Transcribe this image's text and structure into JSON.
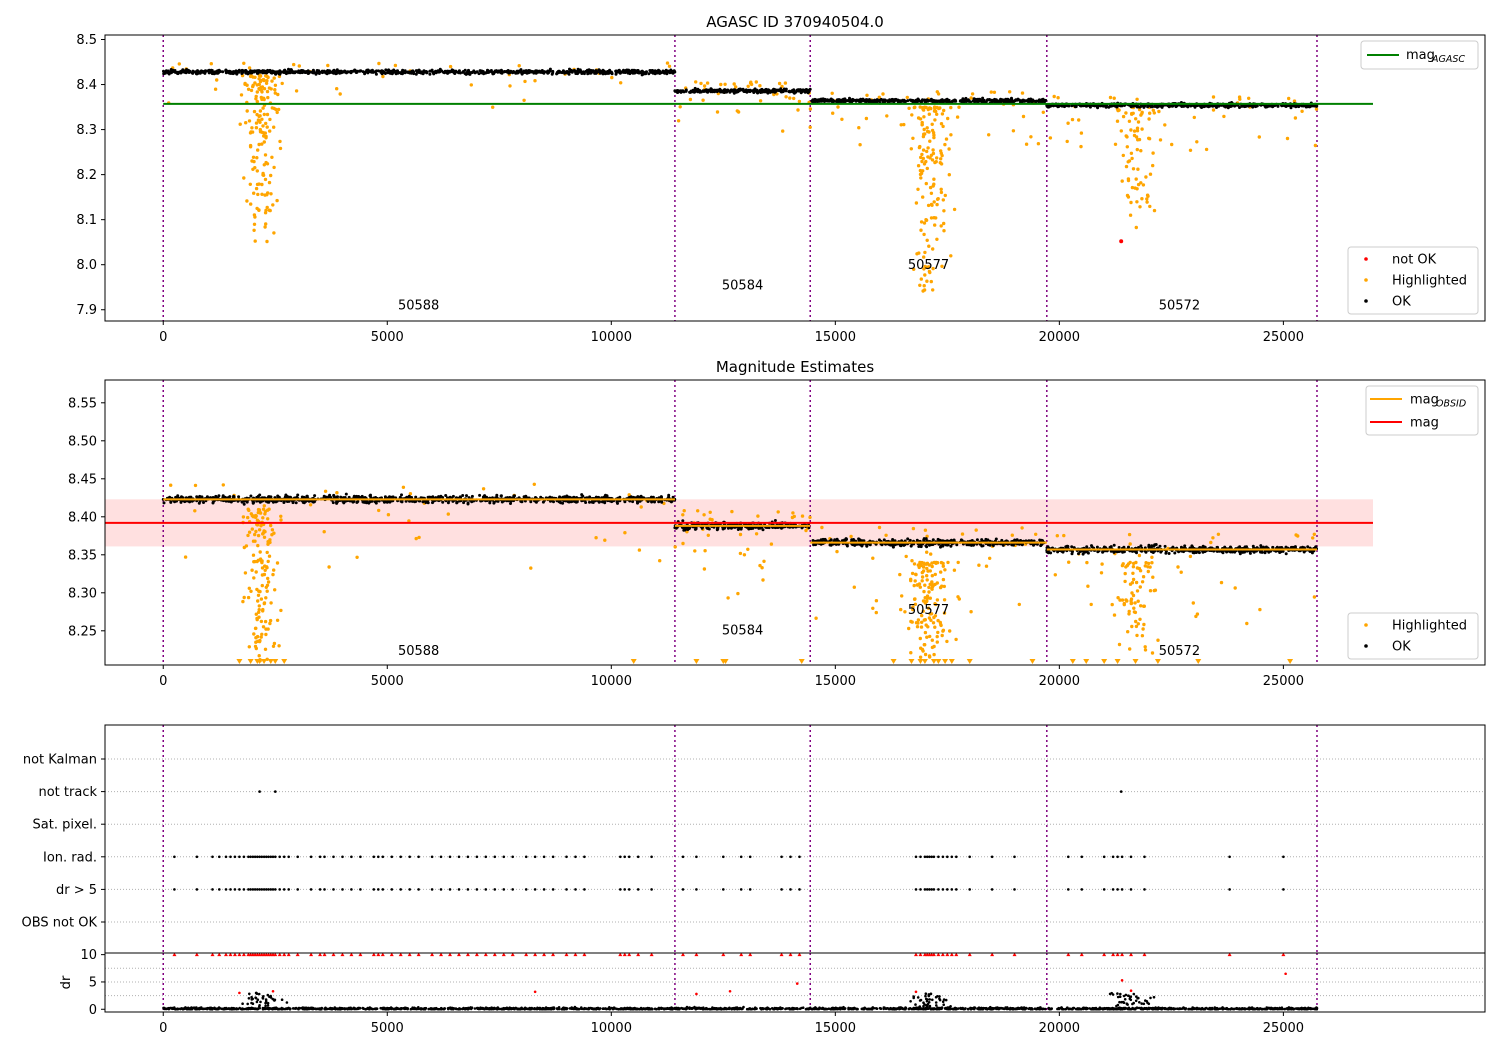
{
  "chart_data": [
    {
      "type": "scatter",
      "title": "AGASC ID 370940504.0",
      "xlim": [
        -1300,
        29500
      ],
      "ylim": [
        7.875,
        8.51
      ],
      "x_ticks": [
        0,
        5000,
        10000,
        15000,
        20000,
        25000
      ],
      "y_ticks": [
        7.9,
        8.0,
        8.1,
        8.2,
        8.3,
        8.4,
        8.5
      ],
      "obsid_boundaries": [
        0,
        11420,
        14440,
        19720,
        25750
      ],
      "obsid_labels": [
        {
          "text": "50588",
          "x": 5700,
          "y": 7.9
        },
        {
          "text": "50584",
          "x": 12930,
          "y": 7.945
        },
        {
          "text": "50577",
          "x": 17080,
          "y": 7.99
        },
        {
          "text": "50572",
          "x": 22680,
          "y": 7.9
        }
      ],
      "segments": [
        {
          "x_start": 0,
          "x_end": 11420,
          "level": 8.428
        },
        {
          "x_start": 11420,
          "x_end": 14440,
          "level": 8.386
        },
        {
          "x_start": 14440,
          "x_end": 19720,
          "level": 8.364
        },
        {
          "x_start": 19720,
          "x_end": 25750,
          "level": 8.354
        }
      ],
      "reference_lines": [
        {
          "name": "mag_AGASC",
          "y": 8.357,
          "x_start": 0,
          "x_end": 27000,
          "color": "#008000"
        }
      ],
      "legend": {
        "upper": {
          "placement": "top-right",
          "entries": [
            {
              "main": "mag",
              "sub": "AGASC",
              "color": "#008000"
            }
          ]
        },
        "lower": {
          "placement": "bottom-right",
          "entries": [
            {
              "label": "not OK",
              "color": "#ff0000"
            },
            {
              "label": "Highlighted",
              "color": "#ffa500"
            },
            {
              "label": "OK",
              "color": "#000000"
            }
          ]
        }
      },
      "highlighted_clusters": [
        {
          "x_center": 2200,
          "x_spread": 500,
          "y_min": 8.05,
          "y_max": 8.42,
          "count": 160
        },
        {
          "x_center": 17100,
          "x_spread": 650,
          "y_min": 7.94,
          "y_max": 8.35,
          "count": 150
        },
        {
          "x_center": 21700,
          "x_spread": 700,
          "y_min": 8.08,
          "y_max": 8.35,
          "count": 80
        }
      ],
      "not_ok_points": [
        {
          "x": 21380,
          "y": 8.052
        }
      ]
    },
    {
      "type": "scatter",
      "title": "Magnitude Estimates",
      "xlim": [
        -1300,
        29500
      ],
      "ylim": [
        8.205,
        8.58
      ],
      "x_ticks": [
        0,
        5000,
        10000,
        15000,
        20000,
        25000
      ],
      "y_ticks": [
        8.25,
        8.3,
        8.35,
        8.4,
        8.45,
        8.5,
        8.55
      ],
      "obsid_boundaries": [
        0,
        11420,
        14440,
        19720,
        25750
      ],
      "obsid_labels": [
        {
          "text": "50588",
          "x": 5700,
          "y": 8.218
        },
        {
          "text": "50584",
          "x": 12930,
          "y": 8.245
        },
        {
          "text": "50577",
          "x": 17080,
          "y": 8.272
        },
        {
          "text": "50572",
          "x": 22680,
          "y": 8.218
        }
      ],
      "segments": [
        {
          "x_start": 0,
          "x_end": 11420,
          "level": 8.423
        },
        {
          "x_start": 11420,
          "x_end": 14440,
          "level": 8.388
        },
        {
          "x_start": 14440,
          "x_end": 19720,
          "level": 8.366
        },
        {
          "x_start": 19720,
          "x_end": 25750,
          "level": 8.357
        }
      ],
      "mag_line": {
        "name": "mag",
        "y": 8.392,
        "band": [
          8.361,
          8.423
        ],
        "x_start": -1300,
        "x_end": 27000,
        "color": "#ff0000"
      },
      "legend": {
        "upper": {
          "placement": "top-right",
          "entries": [
            {
              "main": "mag",
              "sub": "OBSID",
              "color": "#ffa500"
            },
            {
              "main": "mag",
              "sub": "",
              "color": "#ff0000"
            }
          ]
        },
        "lower": {
          "placement": "bottom-right",
          "entries": [
            {
              "label": "Highlighted",
              "color": "#ffa500"
            },
            {
              "label": "OK",
              "color": "#000000"
            }
          ]
        }
      },
      "highlighted_clusters": [
        {
          "x_center": 2200,
          "x_spread": 500,
          "y_min": 8.21,
          "y_max": 8.41,
          "count": 150
        },
        {
          "x_center": 17100,
          "x_spread": 650,
          "y_min": 8.21,
          "y_max": 8.34,
          "count": 140
        },
        {
          "x_center": 21700,
          "x_spread": 700,
          "y_min": 8.22,
          "y_max": 8.34,
          "count": 70
        }
      ],
      "lower_limit_markers_x": [
        1700,
        1950,
        2100,
        2150,
        2250,
        2400,
        2500,
        2700,
        10500,
        11900,
        12500,
        12550,
        14250,
        16300,
        16700,
        16900,
        17000,
        17200,
        17300,
        17450,
        17600,
        18000,
        19400,
        20300,
        20600,
        21000,
        21300,
        21700,
        22200,
        23100,
        25150
      ]
    },
    {
      "type": "scatter",
      "title": "",
      "xlim": [
        -1300,
        29500
      ],
      "categories": [
        "not Kalman",
        "not track",
        "Sat. pixel.",
        "Ion. rad.",
        "dr > 5",
        "OBS not OK"
      ],
      "obsid_boundaries": [
        0,
        11420,
        14440,
        19720,
        25750
      ],
      "flag_points": {
        "not track": [
          2150,
          2500,
          21380
        ],
        "Ion. rad.": [
          250,
          750,
          1100,
          1250,
          1400,
          1500,
          1600,
          1700,
          1800,
          1900,
          1950,
          2000,
          2050,
          2100,
          2150,
          2200,
          2250,
          2300,
          2350,
          2400,
          2450,
          2500,
          2600,
          2700,
          2800,
          3000,
          3300,
          3500,
          3600,
          3800,
          4000,
          4200,
          4400,
          4700,
          4800,
          4900,
          5100,
          5300,
          5500,
          5700,
          6000,
          6200,
          6400,
          6600,
          6800,
          7000,
          7200,
          7400,
          7600,
          7800,
          8100,
          8300,
          8500,
          8700,
          9000,
          9200,
          9400,
          10200,
          10300,
          10400,
          10600,
          10900,
          11600,
          11900,
          12500,
          12900,
          13100,
          13800,
          14000,
          14200,
          16800,
          16900,
          17000,
          17050,
          17100,
          17150,
          17200,
          17300,
          17400,
          17500,
          17600,
          17700,
          18000,
          18500,
          19000,
          20200,
          20500,
          21000,
          21200,
          21300,
          21400,
          21600,
          21900,
          23800,
          25000
        ],
        "dr > 5": [
          250,
          750,
          1100,
          1250,
          1400,
          1500,
          1600,
          1700,
          1800,
          1900,
          1950,
          2000,
          2050,
          2100,
          2150,
          2200,
          2250,
          2300,
          2350,
          2400,
          2450,
          2500,
          2600,
          2700,
          2800,
          3000,
          3300,
          3500,
          3600,
          3800,
          4000,
          4200,
          4400,
          4700,
          4800,
          4900,
          5100,
          5300,
          5500,
          5700,
          6000,
          6200,
          6400,
          6600,
          6800,
          7000,
          7200,
          7400,
          7600,
          7800,
          8100,
          8300,
          8500,
          8700,
          9000,
          9200,
          9400,
          10200,
          10300,
          10400,
          10600,
          10900,
          11600,
          11900,
          12500,
          12900,
          13100,
          13800,
          14000,
          14200,
          16800,
          16900,
          17000,
          17050,
          17100,
          17150,
          17200,
          17300,
          17400,
          17500,
          17600,
          17700,
          18000,
          18500,
          19000,
          20200,
          20500,
          21000,
          21200,
          21300,
          21400,
          21600,
          21900,
          23800,
          25000
        ]
      }
    },
    {
      "type": "scatter",
      "title": "",
      "xlim": [
        -1300,
        29500
      ],
      "ylim": [
        -0.5,
        10.3
      ],
      "x_ticks": [
        0,
        5000,
        10000,
        15000,
        20000,
        25000
      ],
      "y_ticks": [
        0,
        5,
        10
      ],
      "ylabel": "dr",
      "obsid_boundaries": [
        0,
        11420,
        14440,
        19720,
        25750
      ],
      "capped_points_x": [
        250,
        750,
        1100,
        1250,
        1400,
        1500,
        1600,
        1700,
        1800,
        1900,
        1950,
        2000,
        2050,
        2100,
        2150,
        2200,
        2250,
        2300,
        2350,
        2400,
        2450,
        2500,
        2600,
        2700,
        2800,
        3000,
        3300,
        3500,
        3600,
        3800,
        4000,
        4200,
        4400,
        4700,
        4800,
        4900,
        5100,
        5300,
        5500,
        5700,
        6000,
        6200,
        6400,
        6600,
        6800,
        7000,
        7200,
        7400,
        7600,
        7800,
        8100,
        8300,
        8500,
        8700,
        9000,
        9200,
        9400,
        10200,
        10300,
        10400,
        10600,
        10900,
        11600,
        11900,
        12500,
        12900,
        13100,
        13800,
        14000,
        14200,
        16800,
        16900,
        17000,
        17050,
        17100,
        17150,
        17200,
        17300,
        17400,
        17500,
        17600,
        17700,
        18000,
        18500,
        19000,
        20200,
        20500,
        21000,
        21200,
        21300,
        21400,
        21600,
        21900,
        23800,
        25000
      ],
      "red_points": [
        {
          "x": 25050,
          "y": 6.5
        },
        {
          "x": 21400,
          "y": 5.3
        },
        {
          "x": 8300,
          "y": 3.2
        },
        {
          "x": 1700,
          "y": 3.0
        },
        {
          "x": 2450,
          "y": 3.3
        },
        {
          "x": 12650,
          "y": 3.3
        },
        {
          "x": 11900,
          "y": 2.8
        },
        {
          "x": 14150,
          "y": 4.7
        },
        {
          "x": 16800,
          "y": 3.2
        },
        {
          "x": 21600,
          "y": 3.4
        }
      ]
    }
  ]
}
